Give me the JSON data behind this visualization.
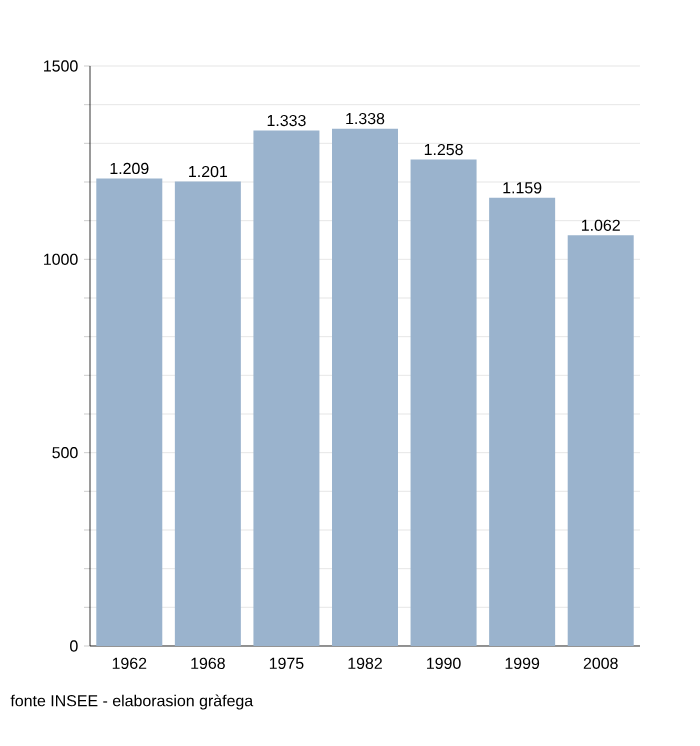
{
  "chart_data": {
    "type": "bar",
    "categories": [
      "1962",
      "1968",
      "1975",
      "1982",
      "1990",
      "1999",
      "2008"
    ],
    "values": [
      1209,
      1201,
      1333,
      1338,
      1258,
      1159,
      1062
    ],
    "value_labels": [
      "1.209",
      "1.201",
      "1.333",
      "1.338",
      "1.258",
      "1.159",
      "1.062"
    ],
    "color": "#9ab3cd",
    "ylim": [
      0,
      1500
    ],
    "yticks": [
      0,
      {
        "value": 100,
        "label": null
      },
      {
        "value": 200,
        "label": null
      },
      {
        "value": 300,
        "label": null
      },
      {
        "value": 400,
        "label": null
      },
      500,
      {
        "value": 600,
        "label": null
      },
      {
        "value": 700,
        "label": null
      },
      {
        "value": 800,
        "label": null
      },
      {
        "value": 900,
        "label": null
      },
      1000,
      {
        "value": 1100,
        "label": null
      },
      {
        "value": 1200,
        "label": null
      },
      {
        "value": 1300,
        "label": null
      },
      {
        "value": 1400,
        "label": null
      },
      1500
    ],
    "grid": "y",
    "annotations": [
      "fonte INSEE - elaborasion gràfega"
    ]
  }
}
